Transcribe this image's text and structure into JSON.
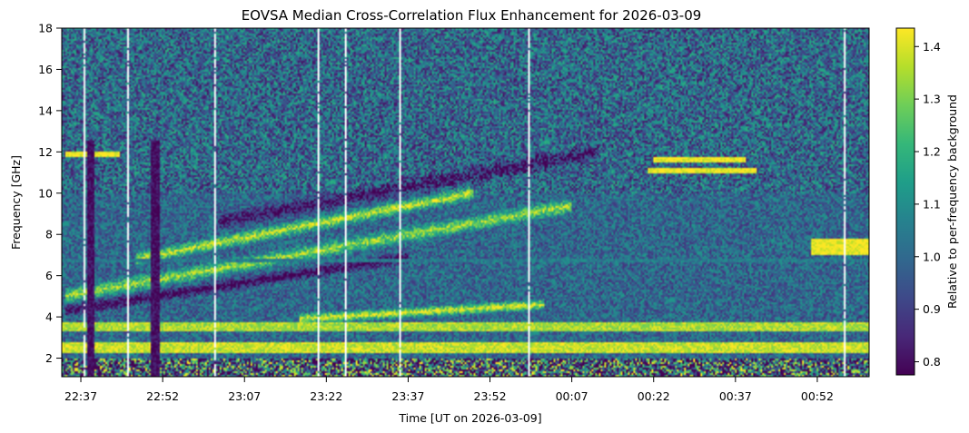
{
  "chart_data": {
    "type": "heatmap",
    "title": "EOVSA Median Cross-Correlation Flux Enhancement for 2026-03-09",
    "xlabel": "Time [UT on 2026-03-09]",
    "ylabel": "Frequency [GHz]",
    "colorbar_label": "Relative to per-frequency background",
    "colormap": "viridis",
    "colormap_stops": [
      "#440154",
      "#482878",
      "#3e4989",
      "#31688e",
      "#26828e",
      "#1f9e89",
      "#35b779",
      "#6ece58",
      "#b5de2b",
      "#fde725"
    ],
    "x_range_minutes_after_2237": [
      -3.5,
      144.5
    ],
    "x_ticks": [
      {
        "label": "22:37",
        "minute": 0
      },
      {
        "label": "22:52",
        "minute": 15
      },
      {
        "label": "23:07",
        "minute": 30
      },
      {
        "label": "23:22",
        "minute": 45
      },
      {
        "label": "23:37",
        "minute": 60
      },
      {
        "label": "23:52",
        "minute": 75
      },
      {
        "label": "00:07",
        "minute": 90
      },
      {
        "label": "00:22",
        "minute": 105
      },
      {
        "label": "00:37",
        "minute": 120
      },
      {
        "label": "00:52",
        "minute": 135
      }
    ],
    "ylim": [
      1.1,
      18
    ],
    "y_ticks": [
      2,
      4,
      6,
      8,
      10,
      12,
      14,
      16,
      18
    ],
    "colorbar_range": [
      0.775,
      1.435
    ],
    "colorbar_ticks": [
      0.8,
      0.9,
      1.0,
      1.1,
      1.2,
      1.3,
      1.4
    ],
    "features": {
      "drift_bands": [
        {
          "f_start": 5.0,
          "f_end": 9.4,
          "t_start": -3,
          "t_end": 90,
          "value": 1.25,
          "width": 0.45
        },
        {
          "f_start": 4.3,
          "f_end": 6.9,
          "t_start": -3,
          "t_end": 60,
          "value": 0.82,
          "width": 0.35
        },
        {
          "f_start": 6.8,
          "f_end": 10.0,
          "t_start": 10,
          "t_end": 72,
          "value": 1.28,
          "width": 0.4
        },
        {
          "f_start": 8.6,
          "f_end": 12.0,
          "t_start": 25,
          "t_end": 95,
          "value": 0.85,
          "width": 0.5
        },
        {
          "f_start": 3.9,
          "f_end": 4.6,
          "t_start": 40,
          "t_end": 85,
          "value": 1.32,
          "width": 0.3
        }
      ],
      "horizontal_bands": [
        {
          "freq": 11.9,
          "t_start": -3,
          "t_end": 7,
          "value": 1.43,
          "width": 0.15
        },
        {
          "freq": 11.6,
          "t_start": 105,
          "t_end": 122,
          "value": 1.43,
          "width": 0.12
        },
        {
          "freq": 11.1,
          "t_start": 104,
          "t_end": 124,
          "value": 1.43,
          "width": 0.12
        },
        {
          "freq": 7.4,
          "t_start": 134,
          "t_end": 144.5,
          "value": 1.43,
          "width": 0.4
        },
        {
          "freq": 6.7,
          "t_start": -3.5,
          "t_end": 144.5,
          "value": 1.05,
          "width": 0.08
        },
        {
          "freq": 2.5,
          "t_start": -3.5,
          "t_end": 144.5,
          "value": 1.38,
          "width": 0.25
        },
        {
          "freq": 3.5,
          "t_start": -3.5,
          "t_end": 144.5,
          "value": 1.35,
          "width": 0.2
        }
      ],
      "dark_columns": [
        {
          "minute": 1.8,
          "width": 1.3,
          "value": 0.8
        },
        {
          "minute": 13.5,
          "width": 1.6,
          "value": 0.8
        }
      ],
      "white_columns": [
        0.5,
        8.8,
        24.5,
        43.5,
        48.5,
        58.5,
        82,
        140
      ]
    }
  }
}
